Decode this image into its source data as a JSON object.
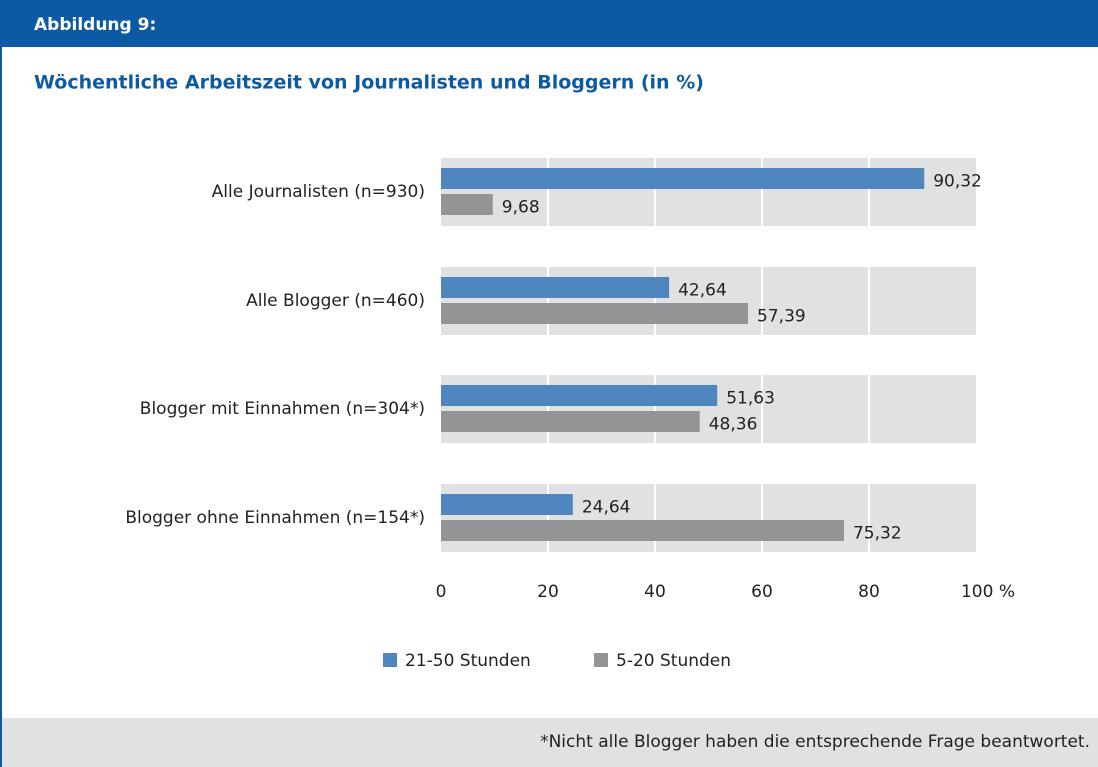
{
  "header": "Abbildung 9:",
  "footnote": "*Nicht alle Blogger haben die entsprechende Frage beantwortet.",
  "chart_data": {
    "type": "bar",
    "orientation": "horizontal",
    "title": "Wöchentliche Arbeitszeit von Journalisten und Bloggern (in %)",
    "categories": [
      "Alle Journalisten (n=930)",
      "Alle Blogger (n=460)",
      "Blogger mit Einnahmen (n=304*)",
      "Blogger ohne Einnahmen (n=154*)"
    ],
    "series": [
      {
        "name": "21-50 Stunden",
        "color": "#4f86c0",
        "values": [
          90.32,
          42.64,
          51.63,
          24.64
        ],
        "value_labels": [
          "90,32",
          "42,64",
          "51,63",
          "24,64"
        ]
      },
      {
        "name": "5-20 Stunden",
        "color": "#939496",
        "values": [
          9.68,
          57.39,
          48.36,
          75.32
        ],
        "value_labels": [
          "9,68",
          "57,39",
          "48,36",
          "75,32"
        ]
      }
    ],
    "xlim": [
      0,
      100
    ],
    "xticks": [
      0,
      20,
      40,
      60,
      80,
      {
        "value": 100,
        "label": "100 %"
      }
    ],
    "grid": true
  }
}
